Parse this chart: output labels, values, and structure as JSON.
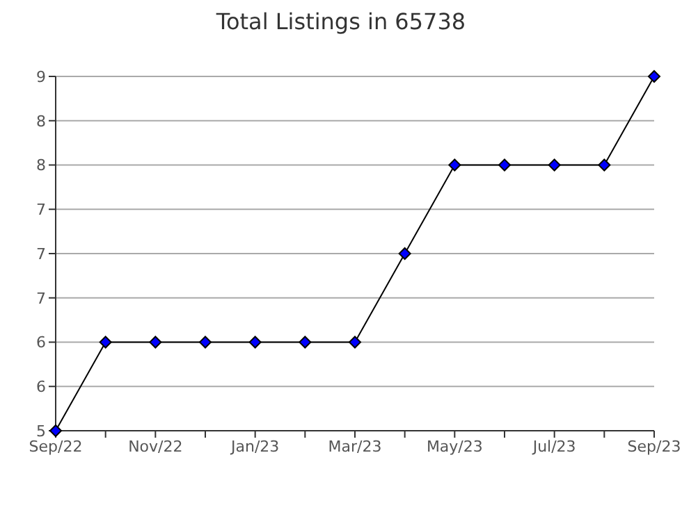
{
  "chart_data": {
    "type": "line",
    "title": "Total Listings in 65738",
    "categories": [
      "Sep/22",
      null,
      "Nov/22",
      null,
      "Jan/23",
      null,
      "Mar/23",
      null,
      "May/23",
      null,
      "Jul/23",
      null,
      "Sep/23"
    ],
    "series": [
      {
        "color": "#0000ff",
        "values": [
          5,
          6,
          6,
          6,
          6,
          6,
          6,
          7,
          8,
          8,
          8,
          8,
          9
        ]
      }
    ],
    "ylim": [
      5,
      9
    ],
    "yticks": [
      5,
      {
        "value": 5.5,
        "label": "6"
      },
      6,
      {
        "value": 6.5,
        "label": "7"
      },
      7,
      {
        "value": 7.5,
        "label": "7"
      },
      8,
      {
        "value": 8.5,
        "label": "8"
      },
      9
    ],
    "grid": "y",
    "marker": "diamond",
    "legend": false
  }
}
